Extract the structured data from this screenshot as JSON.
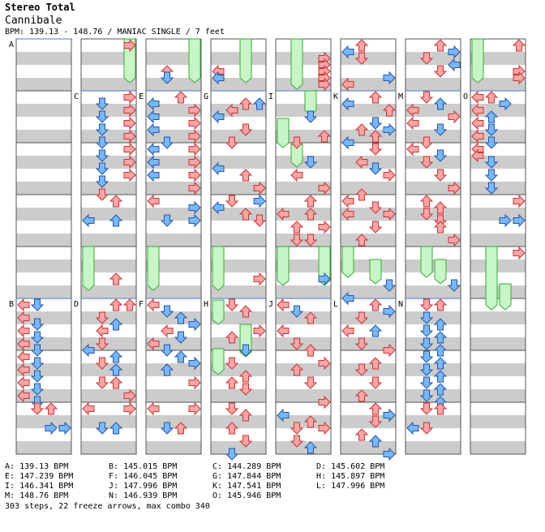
{
  "header": {
    "artist": "Stereo Total",
    "song": "Cannibale",
    "meta": "BPM: 139.13 - 148.76 / MANIAC SINGLE / 7 feet"
  },
  "colors": {
    "stripe": "#cccccc",
    "border": "#555555",
    "bpm_line": "#4a7acc",
    "arrow_red": "#f5a6a6",
    "arrow_red_stroke": "#cc3333",
    "arrow_blue": "#7ab8f5",
    "arrow_blue_stroke": "#2255aa",
    "freeze_fill": "#c8f5c8",
    "freeze_stroke": "#33aa33"
  },
  "segments": [
    {
      "label": "A",
      "bpm": "139.13 BPM"
    },
    {
      "label": "B",
      "bpm": "145.015 BPM"
    },
    {
      "label": "C",
      "bpm": "144.289 BPM"
    },
    {
      "label": "D",
      "bpm": "145.602 BPM"
    },
    {
      "label": "E",
      "bpm": "147.239 BPM"
    },
    {
      "label": "F",
      "bpm": "146.045 BPM"
    },
    {
      "label": "G",
      "bpm": "147.844 BPM"
    },
    {
      "label": "H",
      "bpm": "145.897 BPM"
    },
    {
      "label": "I",
      "bpm": "146.341 BPM"
    },
    {
      "label": "J",
      "bpm": "147.996 BPM"
    },
    {
      "label": "K",
      "bpm": "147.541 BPM"
    },
    {
      "label": "L",
      "bpm": "147.996 BPM"
    },
    {
      "label": "M",
      "bpm": "148.76 BPM"
    },
    {
      "label": "N",
      "bpm": "146.939 BPM"
    },
    {
      "label": "O",
      "bpm": "145.946 BPM"
    }
  ],
  "stats": "303 steps, 22 freeze arrows, max combo 340"
}
